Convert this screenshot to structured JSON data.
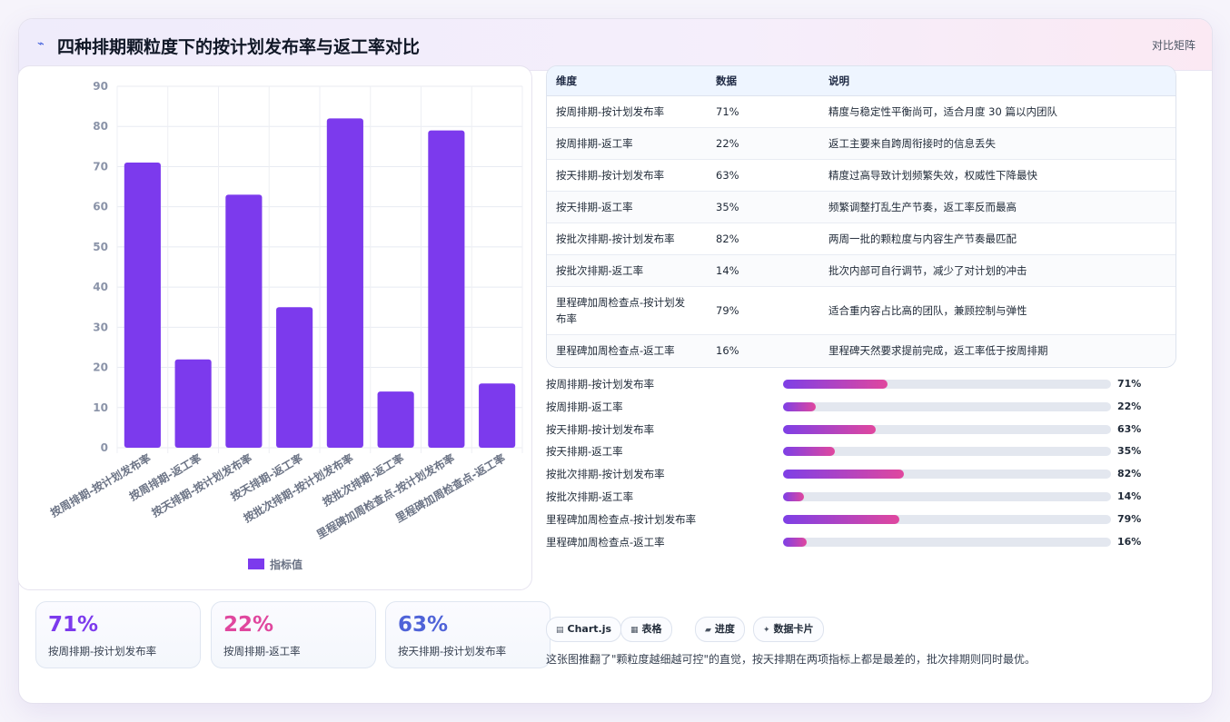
{
  "header": {
    "icon": "chart-line-icon",
    "title": "四种排期颗粒度下的按计划发布率与返工率对比",
    "tag": "对比矩阵"
  },
  "chart_data": {
    "type": "bar",
    "categories": [
      "按周排期-按计划发布率",
      "按周排期-返工率",
      "按天排期-按计划发布率",
      "按天排期-返工率",
      "按批次排期-按计划发布率",
      "按批次排期-返工率",
      "里程碑加周检查点-按计划发布率",
      "里程碑加周检查点-返工率"
    ],
    "series": [
      {
        "name": "指标值",
        "values": [
          71,
          22,
          63,
          35,
          82,
          14,
          79,
          16
        ],
        "color": "#7c3aed"
      }
    ],
    "ylim": [
      0,
      90
    ],
    "yticks": [
      0,
      10,
      20,
      30,
      40,
      50,
      60,
      70,
      80,
      90
    ],
    "grid": true,
    "legend": "bottom"
  },
  "stats": [
    {
      "value": "71%",
      "label": "按周排期-按计划发布率",
      "color": "#7c3aed"
    },
    {
      "value": "22%",
      "label": "按周排期-返工率",
      "color": "#e0479e"
    },
    {
      "value": "63%",
      "label": "按天排期-按计划发布率",
      "color": "#4f63d8"
    }
  ],
  "table": {
    "headers": [
      "维度",
      "数据",
      "说明"
    ],
    "rows": [
      {
        "dim": "按周排期-按计划发布率",
        "val": "71%",
        "desc": "精度与稳定性平衡尚可，适合月度 30 篇以内团队"
      },
      {
        "dim": "按周排期-返工率",
        "val": "22%",
        "desc": "返工主要来自跨周衔接时的信息丢失"
      },
      {
        "dim": "按天排期-按计划发布率",
        "val": "63%",
        "desc": "精度过高导致计划频繁失效，权威性下降最快"
      },
      {
        "dim": "按天排期-返工率",
        "val": "35%",
        "desc": "频繁调整打乱生产节奏，返工率反而最高"
      },
      {
        "dim": "按批次排期-按计划发布率",
        "val": "82%",
        "desc": "两周一批的颗粒度与内容生产节奏最匹配"
      },
      {
        "dim": "按批次排期-返工率",
        "val": "14%",
        "desc": "批次内部可自行调节，减少了对计划的冲击"
      },
      {
        "dim": "里程碑加周检查点-按计划发布率",
        "val": "79%",
        "desc": "适合重内容占比高的团队，兼顾控制与弹性"
      },
      {
        "dim": "里程碑加周检查点-返工率",
        "val": "16%",
        "desc": "里程碑天然要求提前完成，返工率低于按周排期"
      }
    ]
  },
  "progress": [
    {
      "label": "按周排期-按计划发布率",
      "value": 71,
      "text": "71%"
    },
    {
      "label": "按周排期-返工率",
      "value": 22,
      "text": "22%"
    },
    {
      "label": "按天排期-按计划发布率",
      "value": 63,
      "text": "63%"
    },
    {
      "label": "按天排期-返工率",
      "value": 35,
      "text": "35%"
    },
    {
      "label": "按批次排期-按计划发布率",
      "value": 82,
      "text": "82%"
    },
    {
      "label": "按批次排期-返工率",
      "value": 14,
      "text": "14%"
    },
    {
      "label": "里程碑加周检查点-按计划发布率",
      "value": 79,
      "text": "79%"
    },
    {
      "label": "里程碑加周检查点-返工率",
      "value": 16,
      "text": "16%"
    }
  ],
  "chips": [
    {
      "icon": "chart-icon",
      "label": "Chart.js"
    },
    {
      "icon": "table-icon",
      "label": "表格"
    },
    {
      "icon": "progress-icon",
      "label": "进度"
    },
    {
      "icon": "sparkle-icon",
      "label": "数据卡片"
    }
  ],
  "note": "这张图推翻了\"颗粒度越细越可控\"的直觉，按天排期在两项指标上都是最差的，批次排期则同时最优。"
}
